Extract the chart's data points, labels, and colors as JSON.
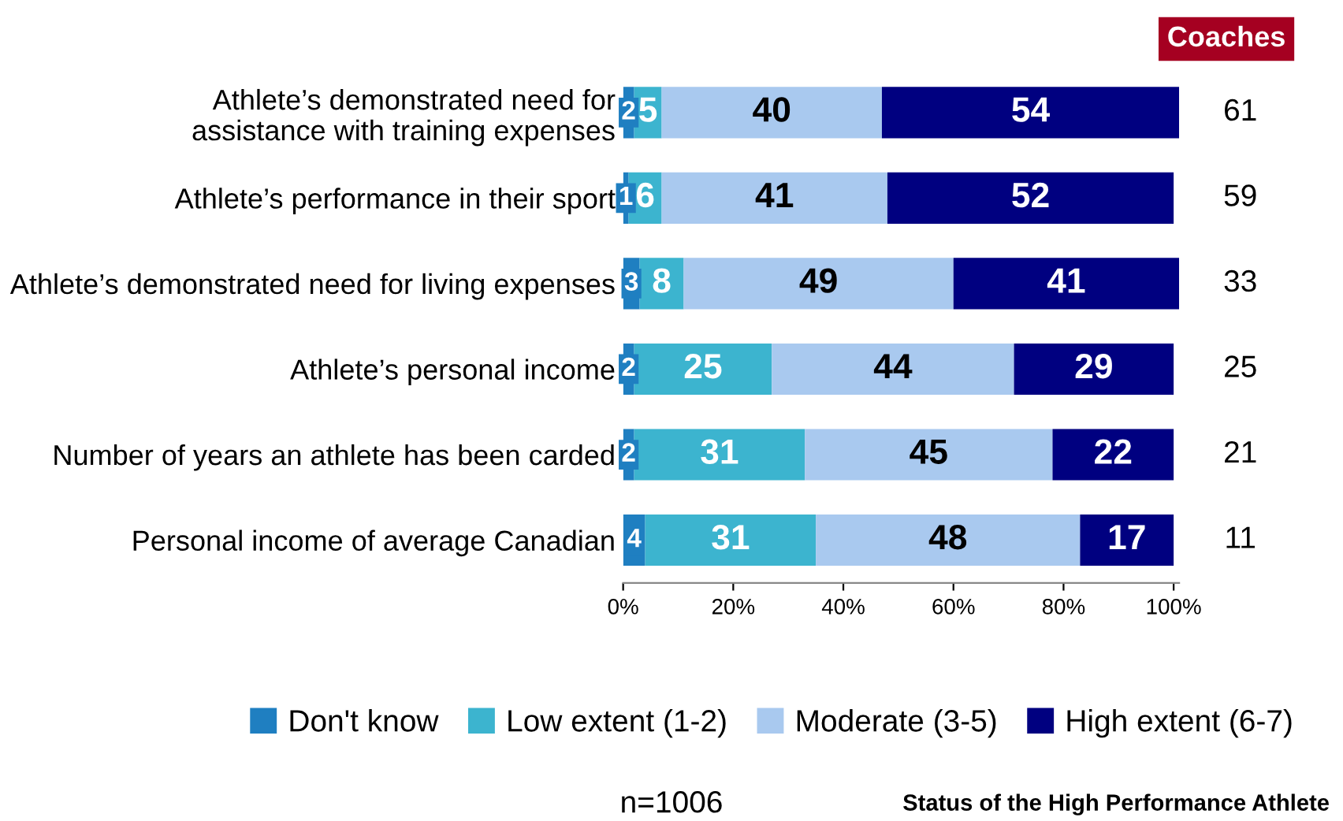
{
  "chart_data": {
    "type": "bar",
    "orientation": "horizontal",
    "stacked": true,
    "data_labels": true,
    "legend": "bottom",
    "grid": false,
    "categories": [
      "Athlete’s demonstrated need for\nassistance with training expenses",
      "Athlete’s performance in their sport",
      "Athlete’s demonstrated need for living expenses",
      "Athlete’s personal income",
      "Number of years an athlete has been carded",
      "Personal income of average Canadian"
    ],
    "series": [
      {
        "name": "Don't know",
        "color": "#1f7fc1",
        "values": [
          2,
          1,
          3,
          2,
          2,
          4
        ]
      },
      {
        "name": "Low extent (1-2)",
        "color": "#3cb4cf",
        "values": [
          5,
          6,
          8,
          25,
          31,
          31
        ]
      },
      {
        "name": "Moderate (3-5)",
        "color": "#a9c9ef",
        "values": [
          40,
          41,
          49,
          44,
          45,
          48
        ]
      },
      {
        "name": "High extent (6-7)",
        "color": "#000080",
        "values": [
          54,
          52,
          41,
          29,
          22,
          17
        ]
      }
    ],
    "xlim": [
      0,
      101
    ],
    "xticks": [
      {
        "value": 0,
        "label": "0%"
      },
      {
        "value": 20,
        "label": "20%"
      },
      {
        "value": 40,
        "label": "40%"
      },
      {
        "value": 60,
        "label": "60%"
      },
      {
        "value": 80,
        "label": "80%"
      },
      {
        "value": 100,
        "label": "100%"
      }
    ],
    "annotations": [
      "Coaches",
      "61",
      "59",
      "33",
      "25",
      "21",
      "11",
      "n=1006",
      "Status of the High Performance Athlete"
    ]
  }
}
